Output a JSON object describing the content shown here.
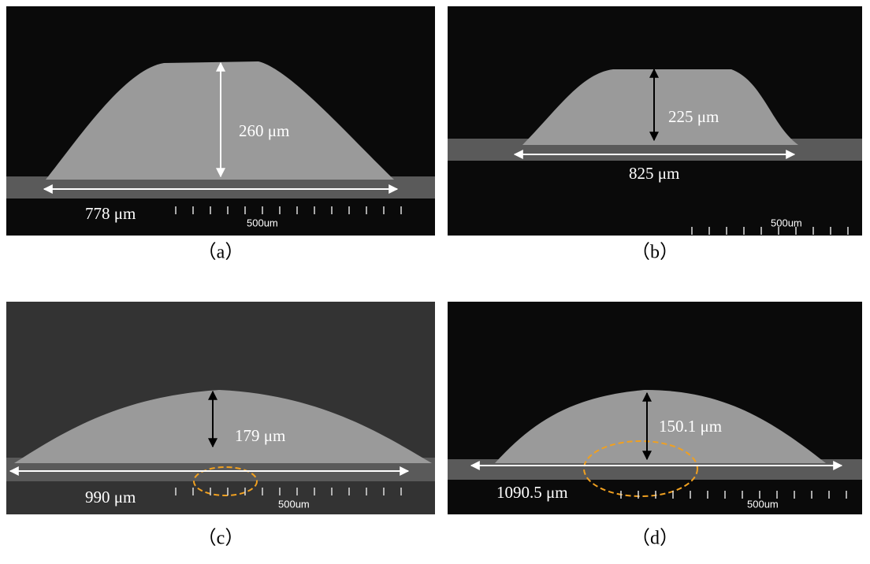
{
  "panels": [
    {
      "height_label": "260 μm",
      "width_label": "778 μm",
      "scale_label": "500um",
      "caption": "（a）"
    },
    {
      "height_label": "225 μm",
      "width_label": "825 μm",
      "scale_label": "500um",
      "caption": "（b）"
    },
    {
      "height_label": "179 μm",
      "width_label": "990 μm",
      "scale_label": "500um",
      "caption": "（c）"
    },
    {
      "height_label": "150.1 μm",
      "width_label": "1090.5 μm",
      "scale_label": "500um",
      "caption": "（d）"
    }
  ]
}
